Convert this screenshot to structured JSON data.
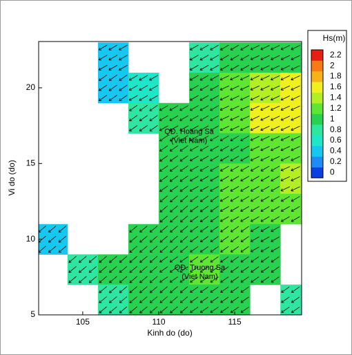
{
  "chart_data": {
    "type": "heatmap",
    "xlabel": "Kinh do (do)",
    "ylabel": "Vi do (do)",
    "xlim": [
      102.1,
      119.4
    ],
    "ylim": [
      5,
      23.06
    ],
    "xticks": [
      105,
      110,
      115
    ],
    "yticks": [
      5,
      10,
      15,
      20
    ],
    "x": [
      103,
      105,
      107,
      109,
      111,
      113,
      115,
      117,
      119
    ],
    "y": [
      22,
      20,
      18,
      16,
      14,
      12,
      10,
      8,
      6
    ],
    "values": [
      [
        null,
        null,
        0.4,
        null,
        null,
        0.9,
        1.0,
        1.1,
        1.1
      ],
      [
        null,
        null,
        0.5,
        0.6,
        null,
        1.0,
        1.2,
        1.4,
        1.6
      ],
      [
        null,
        null,
        null,
        0.9,
        1.0,
        1.0,
        1.2,
        1.6,
        1.7
      ],
      [
        null,
        null,
        null,
        null,
        1.0,
        1.0,
        1.1,
        1.2,
        1.3
      ],
      [
        null,
        null,
        null,
        null,
        1.0,
        1.1,
        1.2,
        1.3,
        1.5
      ],
      [
        null,
        null,
        null,
        null,
        1.1,
        1.1,
        1.2,
        1.3,
        1.2
      ],
      [
        0.5,
        null,
        null,
        1.0,
        1.1,
        1.1,
        1.2,
        1.1,
        null
      ],
      [
        null,
        0.9,
        1.0,
        1.1,
        1.1,
        1.2,
        1.1,
        1.0,
        null
      ],
      [
        null,
        null,
        0.8,
        1.0,
        1.0,
        1.1,
        1.0,
        null,
        0.9
      ]
    ],
    "direction_deg": [
      [
        null,
        null,
        240,
        null,
        null,
        240,
        240,
        245,
        245
      ],
      [
        null,
        null,
        235,
        240,
        null,
        240,
        245,
        245,
        245
      ],
      [
        null,
        null,
        null,
        235,
        240,
        240,
        245,
        245,
        245
      ],
      [
        null,
        null,
        null,
        null,
        235,
        240,
        240,
        245,
        245
      ],
      [
        null,
        null,
        null,
        null,
        235,
        240,
        240,
        240,
        245
      ],
      [
        null,
        null,
        null,
        null,
        230,
        235,
        240,
        240,
        240
      ],
      [
        230,
        null,
        null,
        230,
        230,
        235,
        235,
        240,
        null
      ],
      [
        null,
        230,
        230,
        230,
        235,
        235,
        235,
        235,
        null
      ],
      [
        null,
        null,
        230,
        230,
        230,
        235,
        235,
        null,
        235
      ]
    ],
    "colorbar_title": "Hs(m)",
    "levels": [
      0,
      0.2,
      0.4,
      0.6,
      0.8,
      1,
      1.2,
      1.4,
      1.6,
      1.8,
      2,
      2.2
    ],
    "level_step": 0.2,
    "colormap": [
      "#0a3fe0",
      "#1e8cf5",
      "#16c8f0",
      "#1ee6c8",
      "#2ee6a0",
      "#28d250",
      "#5ee632",
      "#b4ee24",
      "#f0f01e",
      "#f7b21a",
      "#f77a14",
      "#e61e14"
    ],
    "annotations": [
      {
        "text": "QĐ. Hoang Sa",
        "x": 112,
        "y": 17.1
      },
      {
        "text": "(Viet Nam)",
        "x": 112,
        "y": 16.5
      },
      {
        "text": "QĐ. Truong Sa",
        "x": 112.7,
        "y": 8.1
      },
      {
        "text": "(Viet Nam)",
        "x": 112.7,
        "y": 7.5
      }
    ]
  }
}
